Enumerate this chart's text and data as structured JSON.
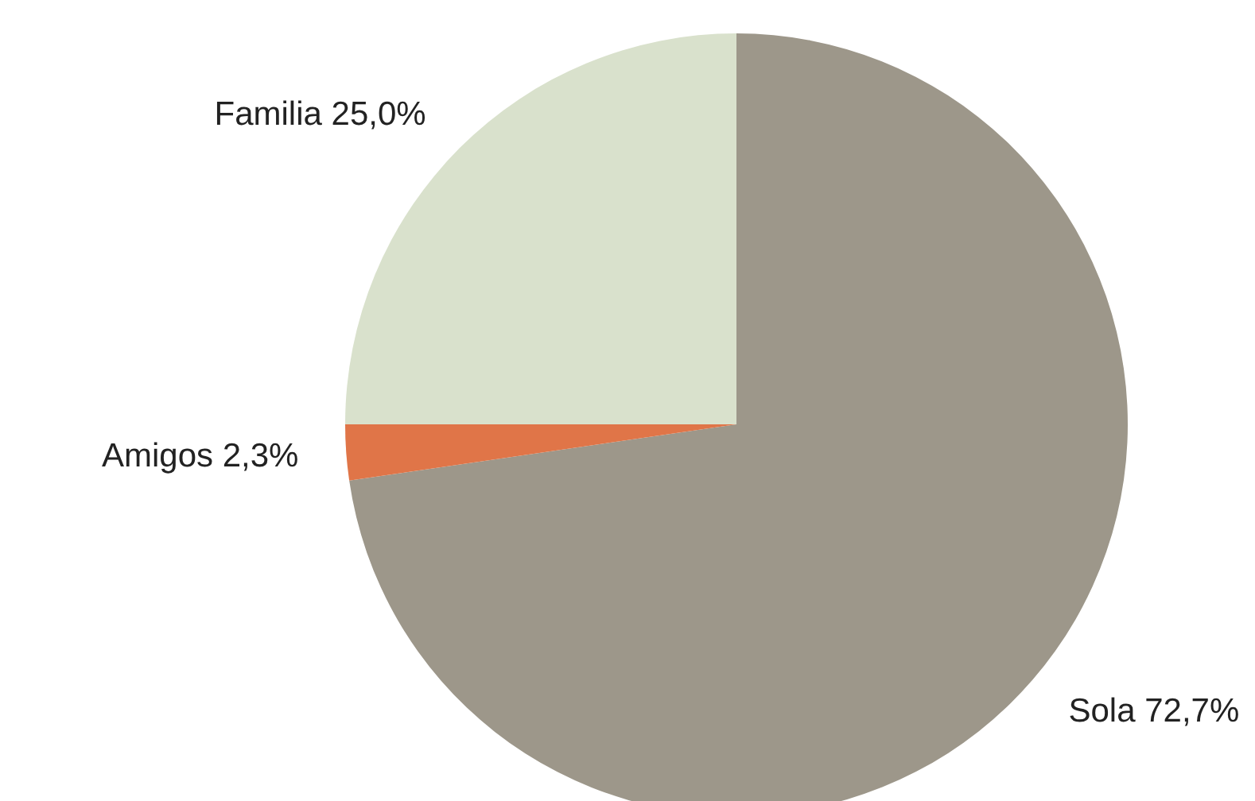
{
  "chart_data": {
    "type": "pie",
    "categories": [
      "Sola",
      "Amigos",
      "Familia"
    ],
    "values": [
      72.7,
      2.3,
      25.0
    ],
    "value_labels": [
      "72,7%",
      "2,3%",
      "25,0%"
    ],
    "colors": [
      "#9d978a",
      "#e07548",
      "#d9e1cc"
    ]
  }
}
